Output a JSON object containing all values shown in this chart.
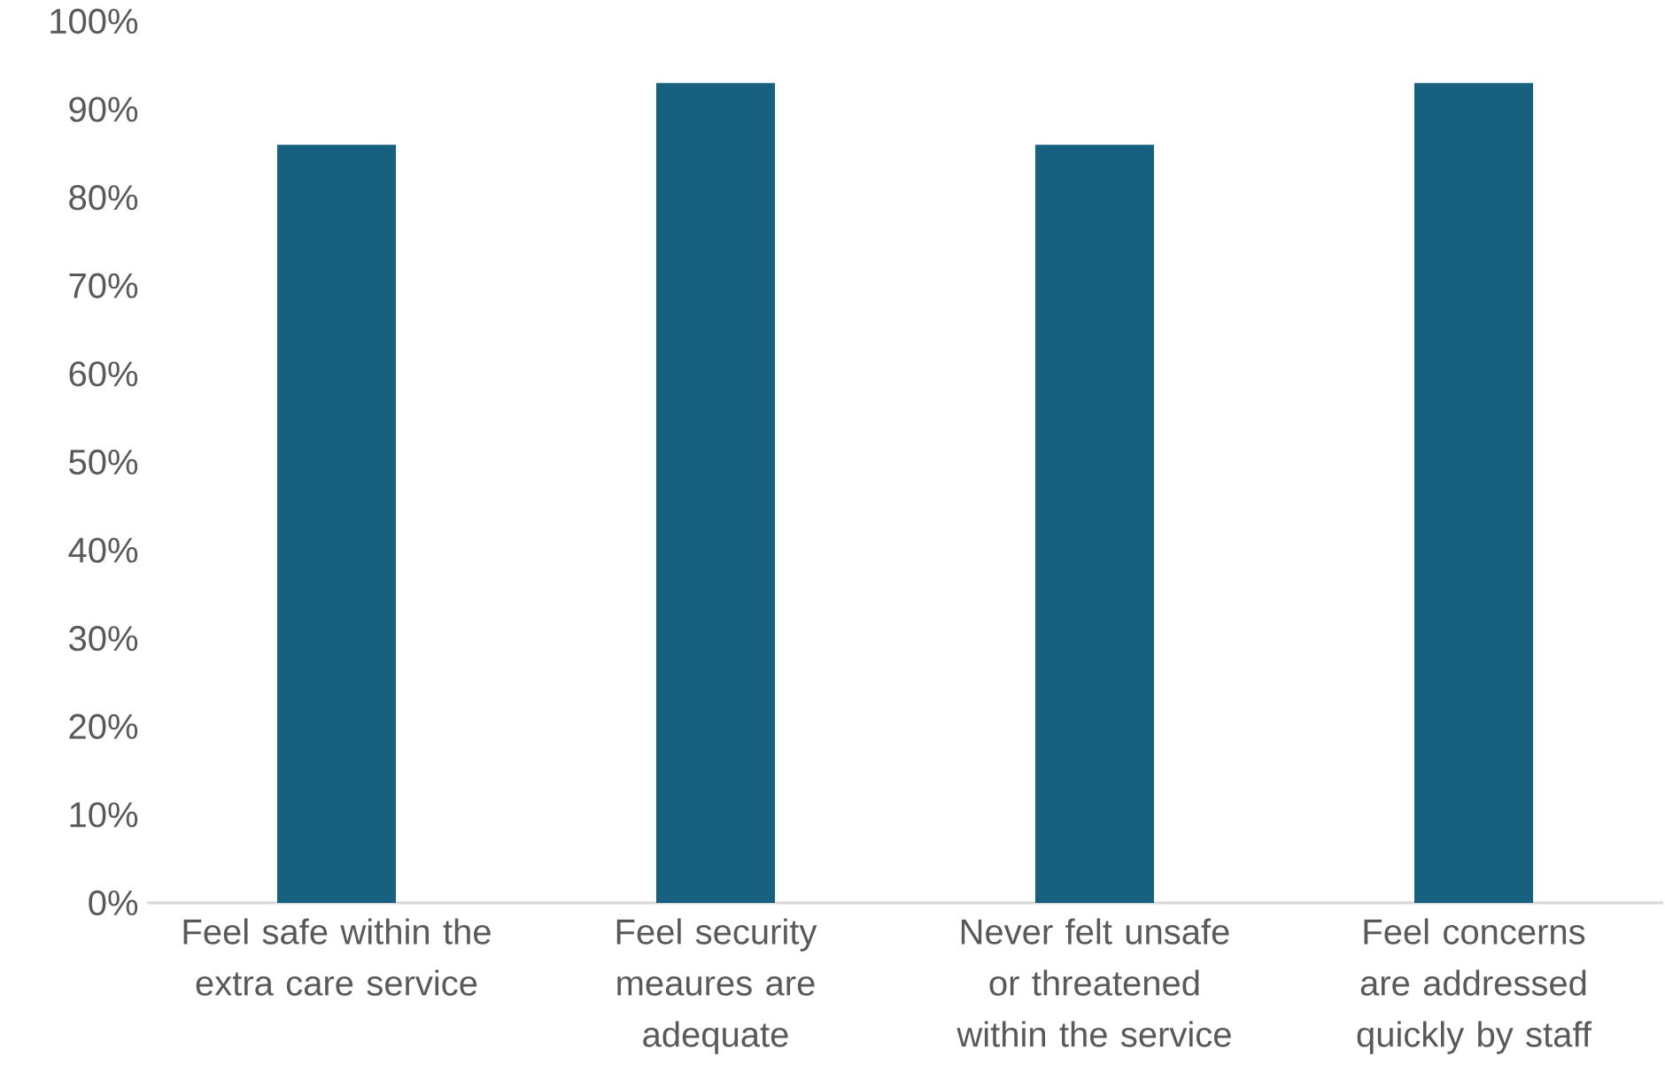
{
  "chart_data": {
    "type": "bar",
    "categories": [
      "Feel safe within the extra care service",
      "Feel security meaures are adequate",
      "Never felt unsafe or threatened within the service",
      "Feel concerns are addressed quickly by staff"
    ],
    "values": [
      86,
      93,
      86,
      93
    ],
    "color": "#17607f",
    "ylim": [
      0,
      100
    ],
    "yticks": [
      {
        "value": 0,
        "label": "0%"
      },
      {
        "value": 10,
        "label": "10%"
      },
      {
        "value": 20,
        "label": "20%"
      },
      {
        "value": 30,
        "label": "30%"
      },
      {
        "value": 40,
        "label": "40%"
      },
      {
        "value": 50,
        "label": "50%"
      },
      {
        "value": 60,
        "label": "60%"
      },
      {
        "value": 70,
        "label": "70%"
      },
      {
        "value": 80,
        "label": "80%"
      },
      {
        "value": 90,
        "label": "90%"
      },
      {
        "value": 100,
        "label": "100%"
      }
    ]
  }
}
